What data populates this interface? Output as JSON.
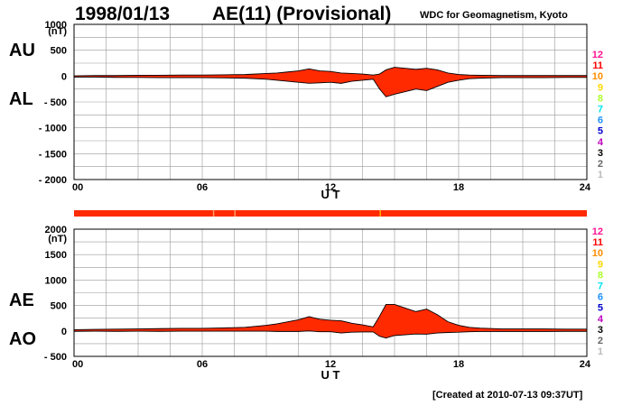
{
  "header": {
    "date": "1998/01/13",
    "title": "AE(11) (Provisional)",
    "institution": "WDC for Geomagnetism, Kyoto"
  },
  "footer": {
    "created": "[Created at 2010-07-13 09:37UT]"
  },
  "colors": {
    "fill": "#ff2a00",
    "outline": "#000000",
    "grid": "#999999",
    "axis": "#000000"
  },
  "legend": {
    "items": [
      {
        "label": "12",
        "color": "#ff1493"
      },
      {
        "label": "11",
        "color": "#ff0000"
      },
      {
        "label": "10",
        "color": "#ff8c00"
      },
      {
        "label": "9",
        "color": "#ffd700"
      },
      {
        "label": "8",
        "color": "#adff2f"
      },
      {
        "label": "7",
        "color": "#00e5ee"
      },
      {
        "label": "6",
        "color": "#1e90ff"
      },
      {
        "label": "5",
        "color": "#0000cd"
      },
      {
        "label": "4",
        "color": "#c000c0"
      },
      {
        "label": "3",
        "color": "#000000"
      },
      {
        "label": "2",
        "color": "#666666"
      },
      {
        "label": "1",
        "color": "#bbbbbb"
      }
    ]
  },
  "station_bar": {
    "color": "#ff2a00",
    "marks": [
      {
        "t": 6.5,
        "color": "#ff9966"
      },
      {
        "t": 7.5,
        "color": "#ff9966"
      },
      {
        "t": 14.3,
        "color": "#ffaa00"
      }
    ]
  },
  "chart_data": [
    {
      "type": "area",
      "xlabel": "U T",
      "unit_label": "(nT)",
      "xlim": [
        0,
        24
      ],
      "ylim": [
        -2000,
        1000
      ],
      "x_ticks": [
        "00",
        "06",
        "12",
        "18",
        "24"
      ],
      "y_ticks": [
        "1000",
        "500",
        "0",
        "- 500",
        "- 1000",
        "- 1500",
        "- 2000"
      ],
      "side_labels": [
        "AU",
        "AL"
      ],
      "series": [
        {
          "name": "AU",
          "x": [
            0,
            1,
            2,
            3,
            4,
            5,
            6,
            7,
            8,
            9,
            9.5,
            10,
            10.5,
            11,
            11.5,
            12,
            12.5,
            13,
            13.5,
            14,
            14.3,
            14.6,
            15,
            15.5,
            16,
            16.5,
            17,
            17.5,
            18,
            18.5,
            19,
            20,
            21,
            22,
            23,
            24
          ],
          "values": [
            5,
            10,
            10,
            15,
            15,
            20,
            20,
            25,
            30,
            50,
            60,
            80,
            100,
            140,
            100,
            90,
            60,
            50,
            40,
            20,
            40,
            120,
            170,
            150,
            130,
            150,
            120,
            60,
            30,
            20,
            15,
            10,
            10,
            10,
            10,
            10
          ]
        },
        {
          "name": "AL",
          "x": [
            0,
            1,
            2,
            3,
            4,
            5,
            6,
            7,
            8,
            9,
            9.5,
            10,
            10.5,
            11,
            11.5,
            12,
            12.5,
            13,
            13.5,
            14,
            14.3,
            14.6,
            15,
            15.5,
            16,
            16.5,
            17,
            17.5,
            18,
            18.5,
            19,
            20,
            21,
            22,
            23,
            24
          ],
          "values": [
            -20,
            -20,
            -25,
            -25,
            -30,
            -30,
            -30,
            -35,
            -40,
            -60,
            -80,
            -100,
            -120,
            -140,
            -130,
            -120,
            -140,
            -100,
            -80,
            -60,
            -250,
            -400,
            -350,
            -300,
            -250,
            -280,
            -200,
            -120,
            -80,
            -50,
            -40,
            -30,
            -30,
            -30,
            -25,
            -25
          ]
        }
      ]
    },
    {
      "type": "area",
      "xlabel": "U T",
      "unit_label": "(nT)",
      "xlim": [
        0,
        24
      ],
      "ylim": [
        -500,
        2000
      ],
      "x_ticks": [
        "00",
        "06",
        "12",
        "18",
        "24"
      ],
      "y_ticks": [
        "2000",
        "1500",
        "1000",
        "500",
        "0",
        "- 500"
      ],
      "side_labels": [
        "AE",
        "AO"
      ],
      "series": [
        {
          "name": "AE",
          "x": [
            0,
            1,
            2,
            3,
            4,
            5,
            6,
            7,
            8,
            9,
            9.5,
            10,
            10.5,
            11,
            11.5,
            12,
            12.5,
            13,
            13.5,
            14,
            14.3,
            14.6,
            15,
            15.5,
            16,
            16.5,
            17,
            17.5,
            18,
            18.5,
            19,
            20,
            21,
            22,
            23,
            24
          ],
          "values": [
            25,
            30,
            35,
            40,
            45,
            50,
            50,
            60,
            70,
            110,
            140,
            180,
            220,
            280,
            230,
            210,
            200,
            150,
            120,
            80,
            290,
            520,
            520,
            450,
            380,
            430,
            320,
            180,
            110,
            70,
            55,
            40,
            40,
            40,
            35,
            35
          ]
        },
        {
          "name": "AO",
          "x": [
            0,
            1,
            2,
            3,
            4,
            5,
            6,
            7,
            8,
            9,
            9.5,
            10,
            10.5,
            11,
            11.5,
            12,
            12.5,
            13,
            13.5,
            14,
            14.3,
            14.6,
            15,
            15.5,
            16,
            16.5,
            17,
            17.5,
            18,
            18.5,
            19,
            20,
            21,
            22,
            23,
            24
          ],
          "values": [
            -8,
            -5,
            -8,
            -5,
            -8,
            -5,
            -5,
            -5,
            -5,
            -5,
            -10,
            -10,
            -10,
            0,
            -15,
            -15,
            -40,
            -25,
            -20,
            -20,
            -105,
            -140,
            -90,
            -75,
            -60,
            -65,
            -40,
            -30,
            -25,
            -15,
            -12,
            -10,
            -10,
            -10,
            -8,
            -8
          ]
        }
      ]
    }
  ]
}
